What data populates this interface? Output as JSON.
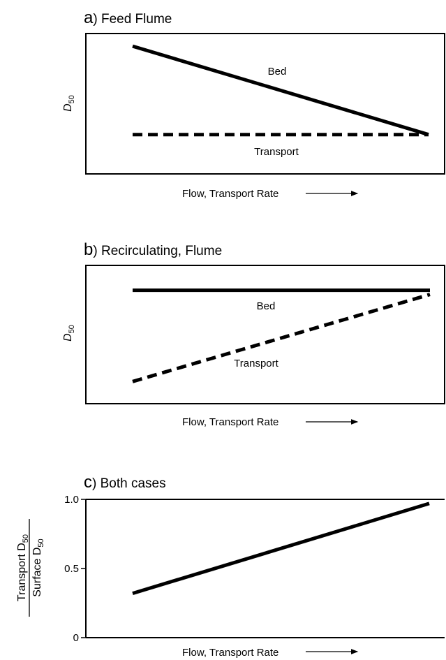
{
  "chart_data": [
    {
      "panel": "a",
      "type": "line",
      "title_letter": "a",
      "title": "Feed Flume",
      "xlabel": "Flow, Transport Rate",
      "ylabel_main": "D",
      "ylabel_sub": "50",
      "series": [
        {
          "name": "Bed",
          "style": "solid",
          "x": [
            0,
            1
          ],
          "y": [
            0.91,
            0.28
          ]
        },
        {
          "name": "Transport",
          "style": "dashed",
          "x": [
            0,
            1
          ],
          "y": [
            0.28,
            0.28
          ]
        }
      ],
      "xlim": [
        0,
        1
      ],
      "ylim": [
        0,
        1
      ]
    },
    {
      "panel": "b",
      "type": "line",
      "title_letter": "b",
      "title": "Recirculating, Flume",
      "xlabel": "Flow, Transport Rate",
      "ylabel_main": "D",
      "ylabel_sub": "50",
      "series": [
        {
          "name": "Bed",
          "style": "solid",
          "x": [
            0,
            1
          ],
          "y": [
            0.82,
            0.82
          ]
        },
        {
          "name": "Transport",
          "style": "dashed",
          "x": [
            0,
            1
          ],
          "y": [
            0.16,
            0.79
          ]
        }
      ],
      "xlim": [
        0,
        1
      ],
      "ylim": [
        0,
        1
      ]
    },
    {
      "panel": "c",
      "type": "line",
      "title_letter": "c",
      "title": "Both cases",
      "xlabel": "Flow, Transport Rate",
      "ylabel_num_main": "Transport D",
      "ylabel_num_sub": "50",
      "ylabel_den_main": "Surface D",
      "ylabel_den_sub": "50",
      "yticks": [
        "0",
        "0.5",
        "1.0"
      ],
      "series": [
        {
          "style": "solid",
          "x": [
            0,
            1
          ],
          "y": [
            0.32,
            0.97
          ]
        }
      ],
      "xlim": [
        0,
        1
      ],
      "ylim": [
        0,
        1.0
      ]
    }
  ]
}
